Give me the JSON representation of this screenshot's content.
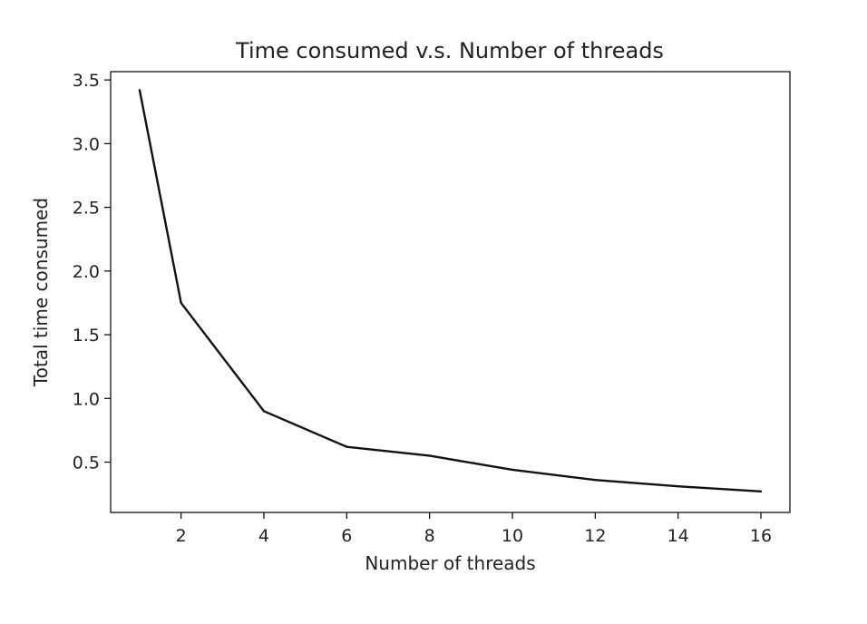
{
  "chart_data": {
    "type": "line",
    "title": "Time consumed v.s. Number of threads",
    "xlabel": "Number of threads",
    "ylabel": "Total time consumed",
    "xlim": [
      0.3,
      16.7
    ],
    "ylim": [
      0.105,
      3.565
    ],
    "xticks": [
      2,
      4,
      6,
      8,
      10,
      12,
      14,
      16
    ],
    "xtick_labels": [
      "2",
      "4",
      "6",
      "8",
      "10",
      "12",
      "14",
      "16"
    ],
    "yticks": [
      0.5,
      1.0,
      1.5,
      2.0,
      2.5,
      3.0,
      3.5
    ],
    "ytick_labels": [
      "0.5",
      "1.0",
      "1.5",
      "2.0",
      "2.5",
      "3.0",
      "3.5"
    ],
    "grid": false,
    "series": [
      {
        "color": "#111111",
        "x": [
          1,
          2,
          4,
          6,
          8,
          10,
          12,
          14,
          16
        ],
        "y": [
          3.42,
          1.75,
          0.9,
          0.62,
          0.55,
          0.44,
          0.36,
          0.31,
          0.27
        ]
      }
    ]
  }
}
